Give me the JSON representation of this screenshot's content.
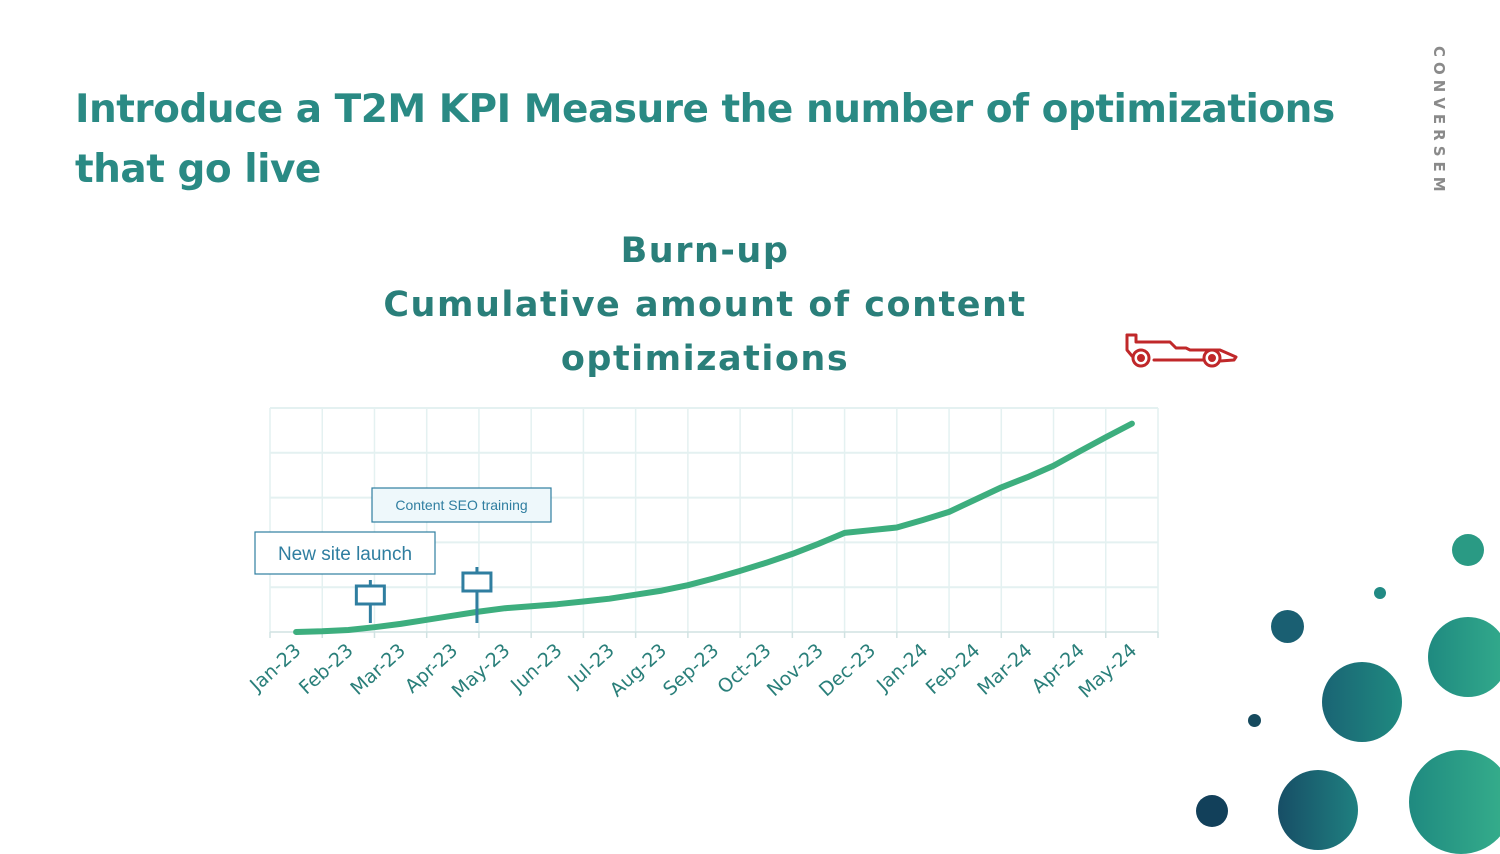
{
  "slide": {
    "title": "Introduce a T2M KPI Measure the number of optimizations that go live",
    "brand": "CONVERSEM"
  },
  "colors": {
    "title": "#2a8a84",
    "line": "#3dae7e",
    "grid": "#e4f1f1",
    "axis_text": "#2a7f7a",
    "annotation": "#2f7ea0",
    "car_icon": "#c0282a"
  },
  "icons": [
    "race-car-icon",
    "signpost-icon"
  ],
  "chart_data": {
    "type": "line",
    "title_lines": [
      "Burn-up",
      "Cumulative amount of content",
      "optimizations"
    ],
    "categories": [
      "Jan-23",
      "Feb-23",
      "Mar-23",
      "Apr-23",
      "May-23",
      "Jun-23",
      "Jul-23",
      "Aug-23",
      "Sep-23",
      "Oct-23",
      "Nov-23",
      "Dec-23",
      "Jan-24",
      "Feb-24",
      "Mar-24",
      "Apr-24",
      "May-24"
    ],
    "x": [
      0,
      0.5,
      1,
      1.5,
      2,
      2.5,
      3,
      3.5,
      4,
      4.5,
      5,
      5.5,
      6,
      6.5,
      7,
      7.5,
      8,
      8.5,
      9,
      9.5,
      10,
      10.5,
      11,
      11.5,
      12,
      12.5,
      13,
      13.5,
      14,
      14.5,
      15,
      15.5,
      16
    ],
    "series": [
      {
        "values": [
          0,
          1,
          3,
          7,
          12,
          18,
          24,
          30,
          35,
          38,
          41,
          45,
          49,
          55,
          61,
          69,
          79,
          90,
          102,
          115,
          130,
          146,
          150,
          154,
          165,
          177,
          195,
          213,
          228,
          245,
          266,
          287,
          307
        ]
      }
    ],
    "ylim": [
      0,
      330
    ],
    "yticks": [
      0,
      66,
      132,
      198,
      264,
      330
    ],
    "grid": true,
    "legend": "none",
    "annotations": [
      {
        "label": "New site launch",
        "x": 1
      },
      {
        "label": "Content SEO training",
        "x": 3.5
      }
    ]
  }
}
